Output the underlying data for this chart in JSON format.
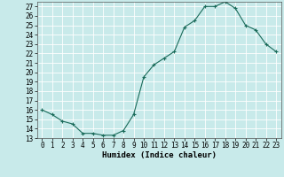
{
  "title": "",
  "xlabel": "Humidex (Indice chaleur)",
  "x": [
    0,
    1,
    2,
    3,
    4,
    5,
    6,
    7,
    8,
    9,
    10,
    11,
    12,
    13,
    14,
    15,
    16,
    17,
    18,
    19,
    20,
    21,
    22,
    23
  ],
  "y": [
    16.0,
    15.5,
    14.8,
    14.5,
    13.5,
    13.5,
    13.3,
    13.3,
    13.8,
    15.5,
    19.5,
    20.8,
    21.5,
    22.2,
    24.8,
    25.5,
    27.0,
    27.0,
    27.5,
    26.8,
    25.0,
    24.5,
    23.0,
    22.2
  ],
  "line_color": "#1a6b5a",
  "marker": "+",
  "marker_size": 3,
  "marker_lw": 0.8,
  "bg_color": "#c8eaea",
  "grid_color": "#ffffff",
  "ylim": [
    13,
    27.5
  ],
  "xlim": [
    -0.5,
    23.5
  ],
  "yticks": [
    13,
    14,
    15,
    16,
    17,
    18,
    19,
    20,
    21,
    22,
    23,
    24,
    25,
    26,
    27
  ],
  "xticks": [
    0,
    1,
    2,
    3,
    4,
    5,
    6,
    7,
    8,
    9,
    10,
    11,
    12,
    13,
    14,
    15,
    16,
    17,
    18,
    19,
    20,
    21,
    22,
    23
  ],
  "tick_fontsize": 5.5,
  "label_fontsize": 6.5,
  "linewidth": 0.8
}
